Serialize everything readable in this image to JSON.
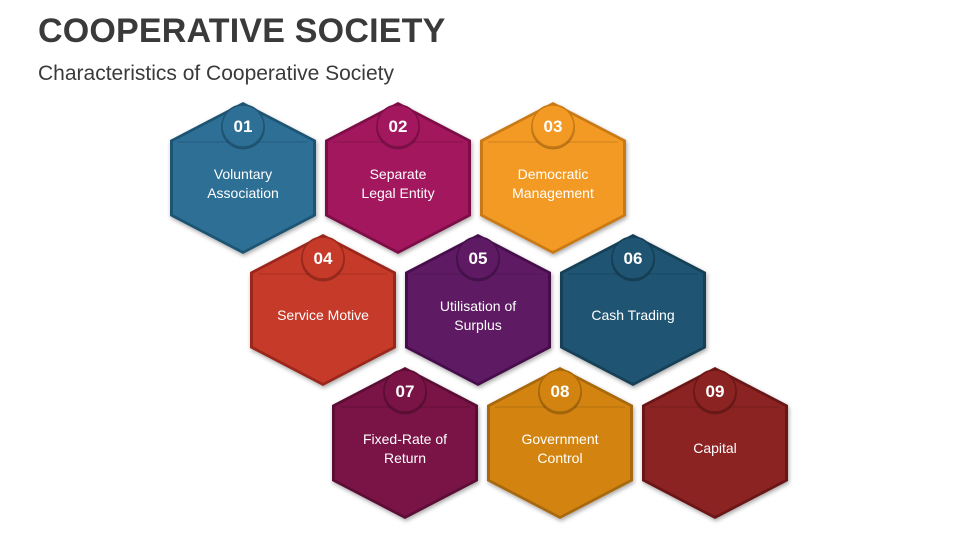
{
  "header": {
    "title": "COOPERATIVE SOCIETY",
    "subtitle": "Characteristics of Cooperative Society"
  },
  "items": [
    {
      "number": "01",
      "line1": "Voluntary",
      "line2": "Association",
      "color": "#2e6f96",
      "dark": "#1f5473"
    },
    {
      "number": "02",
      "line1": "Separate",
      "line2": "Legal Entity",
      "color": "#a3175e",
      "dark": "#7d0e47"
    },
    {
      "number": "03",
      "line1": "Democratic",
      "line2": "Management",
      "color": "#f39a24",
      "dark": "#c97a12"
    },
    {
      "number": "04",
      "line1": "Service Motive",
      "line2": "",
      "color": "#c63a2a",
      "dark": "#9a281b"
    },
    {
      "number": "05",
      "line1": "Utilisation of",
      "line2": "Surplus",
      "color": "#5e1a63",
      "dark": "#46114b"
    },
    {
      "number": "06",
      "line1": "Cash Trading",
      "line2": "",
      "color": "#1f5573",
      "dark": "#153f57"
    },
    {
      "number": "07",
      "line1": "Fixed-Rate of",
      "line2": "Return",
      "color": "#7a1446",
      "dark": "#5c0d34"
    },
    {
      "number": "08",
      "line1": "Government",
      "line2": "Control",
      "color": "#d38410",
      "dark": "#a8680a"
    },
    {
      "number": "09",
      "line1": "Capital",
      "line2": "",
      "color": "#8b2322",
      "dark": "#6a1716"
    }
  ]
}
